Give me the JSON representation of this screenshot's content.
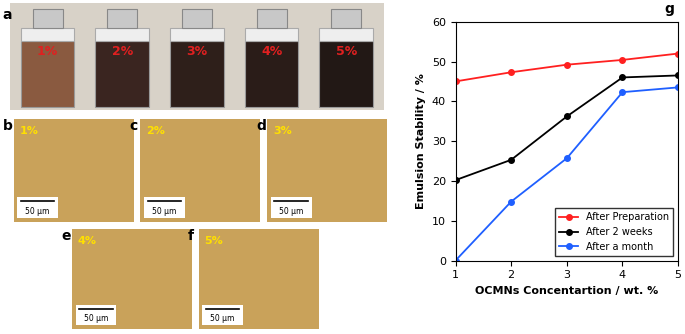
{
  "photos": [
    {
      "panel": "a",
      "labels": [
        "1%",
        "2%",
        "3%",
        "4%",
        "5%"
      ]
    },
    {
      "panel": "b",
      "label": "1%",
      "scale_bar": "50 μm"
    },
    {
      "panel": "c",
      "label": "2%",
      "scale_bar": "50 μm"
    },
    {
      "panel": "d",
      "label": "3%",
      "scale_bar": "50 μm"
    },
    {
      "panel": "e",
      "label": "4%",
      "scale_bar": "50 μm"
    },
    {
      "panel": "f",
      "label": "5%",
      "scale_bar": "50 μm"
    }
  ],
  "chart_data": {
    "type": "line",
    "panel": "g",
    "x_label": "OCMNs Concentartion / wt. %",
    "y_label": "Emulsion Stability / %",
    "x": [
      1,
      2,
      3,
      4,
      5
    ],
    "series": [
      {
        "name": "After Preparation",
        "color": "#ff2020",
        "marker": "o",
        "values": [
          45.0,
          47.3,
          49.2,
          50.4,
          52.0
        ]
      },
      {
        "name": "After 2 weeks",
        "color": "#000000",
        "marker": "o",
        "values": [
          20.2,
          25.3,
          36.2,
          46.0,
          46.5
        ]
      },
      {
        "name": "After a month",
        "color": "#1f5fff",
        "marker": "o",
        "values": [
          0.0,
          14.8,
          25.7,
          42.3,
          43.5
        ]
      }
    ],
    "xlim": [
      1,
      5
    ],
    "xticks": [
      1,
      2,
      3,
      4,
      5
    ],
    "ylim": [
      0,
      60
    ],
    "yticks": [
      0,
      10,
      20,
      30,
      40,
      50,
      60
    ],
    "legend": "lower right"
  }
}
